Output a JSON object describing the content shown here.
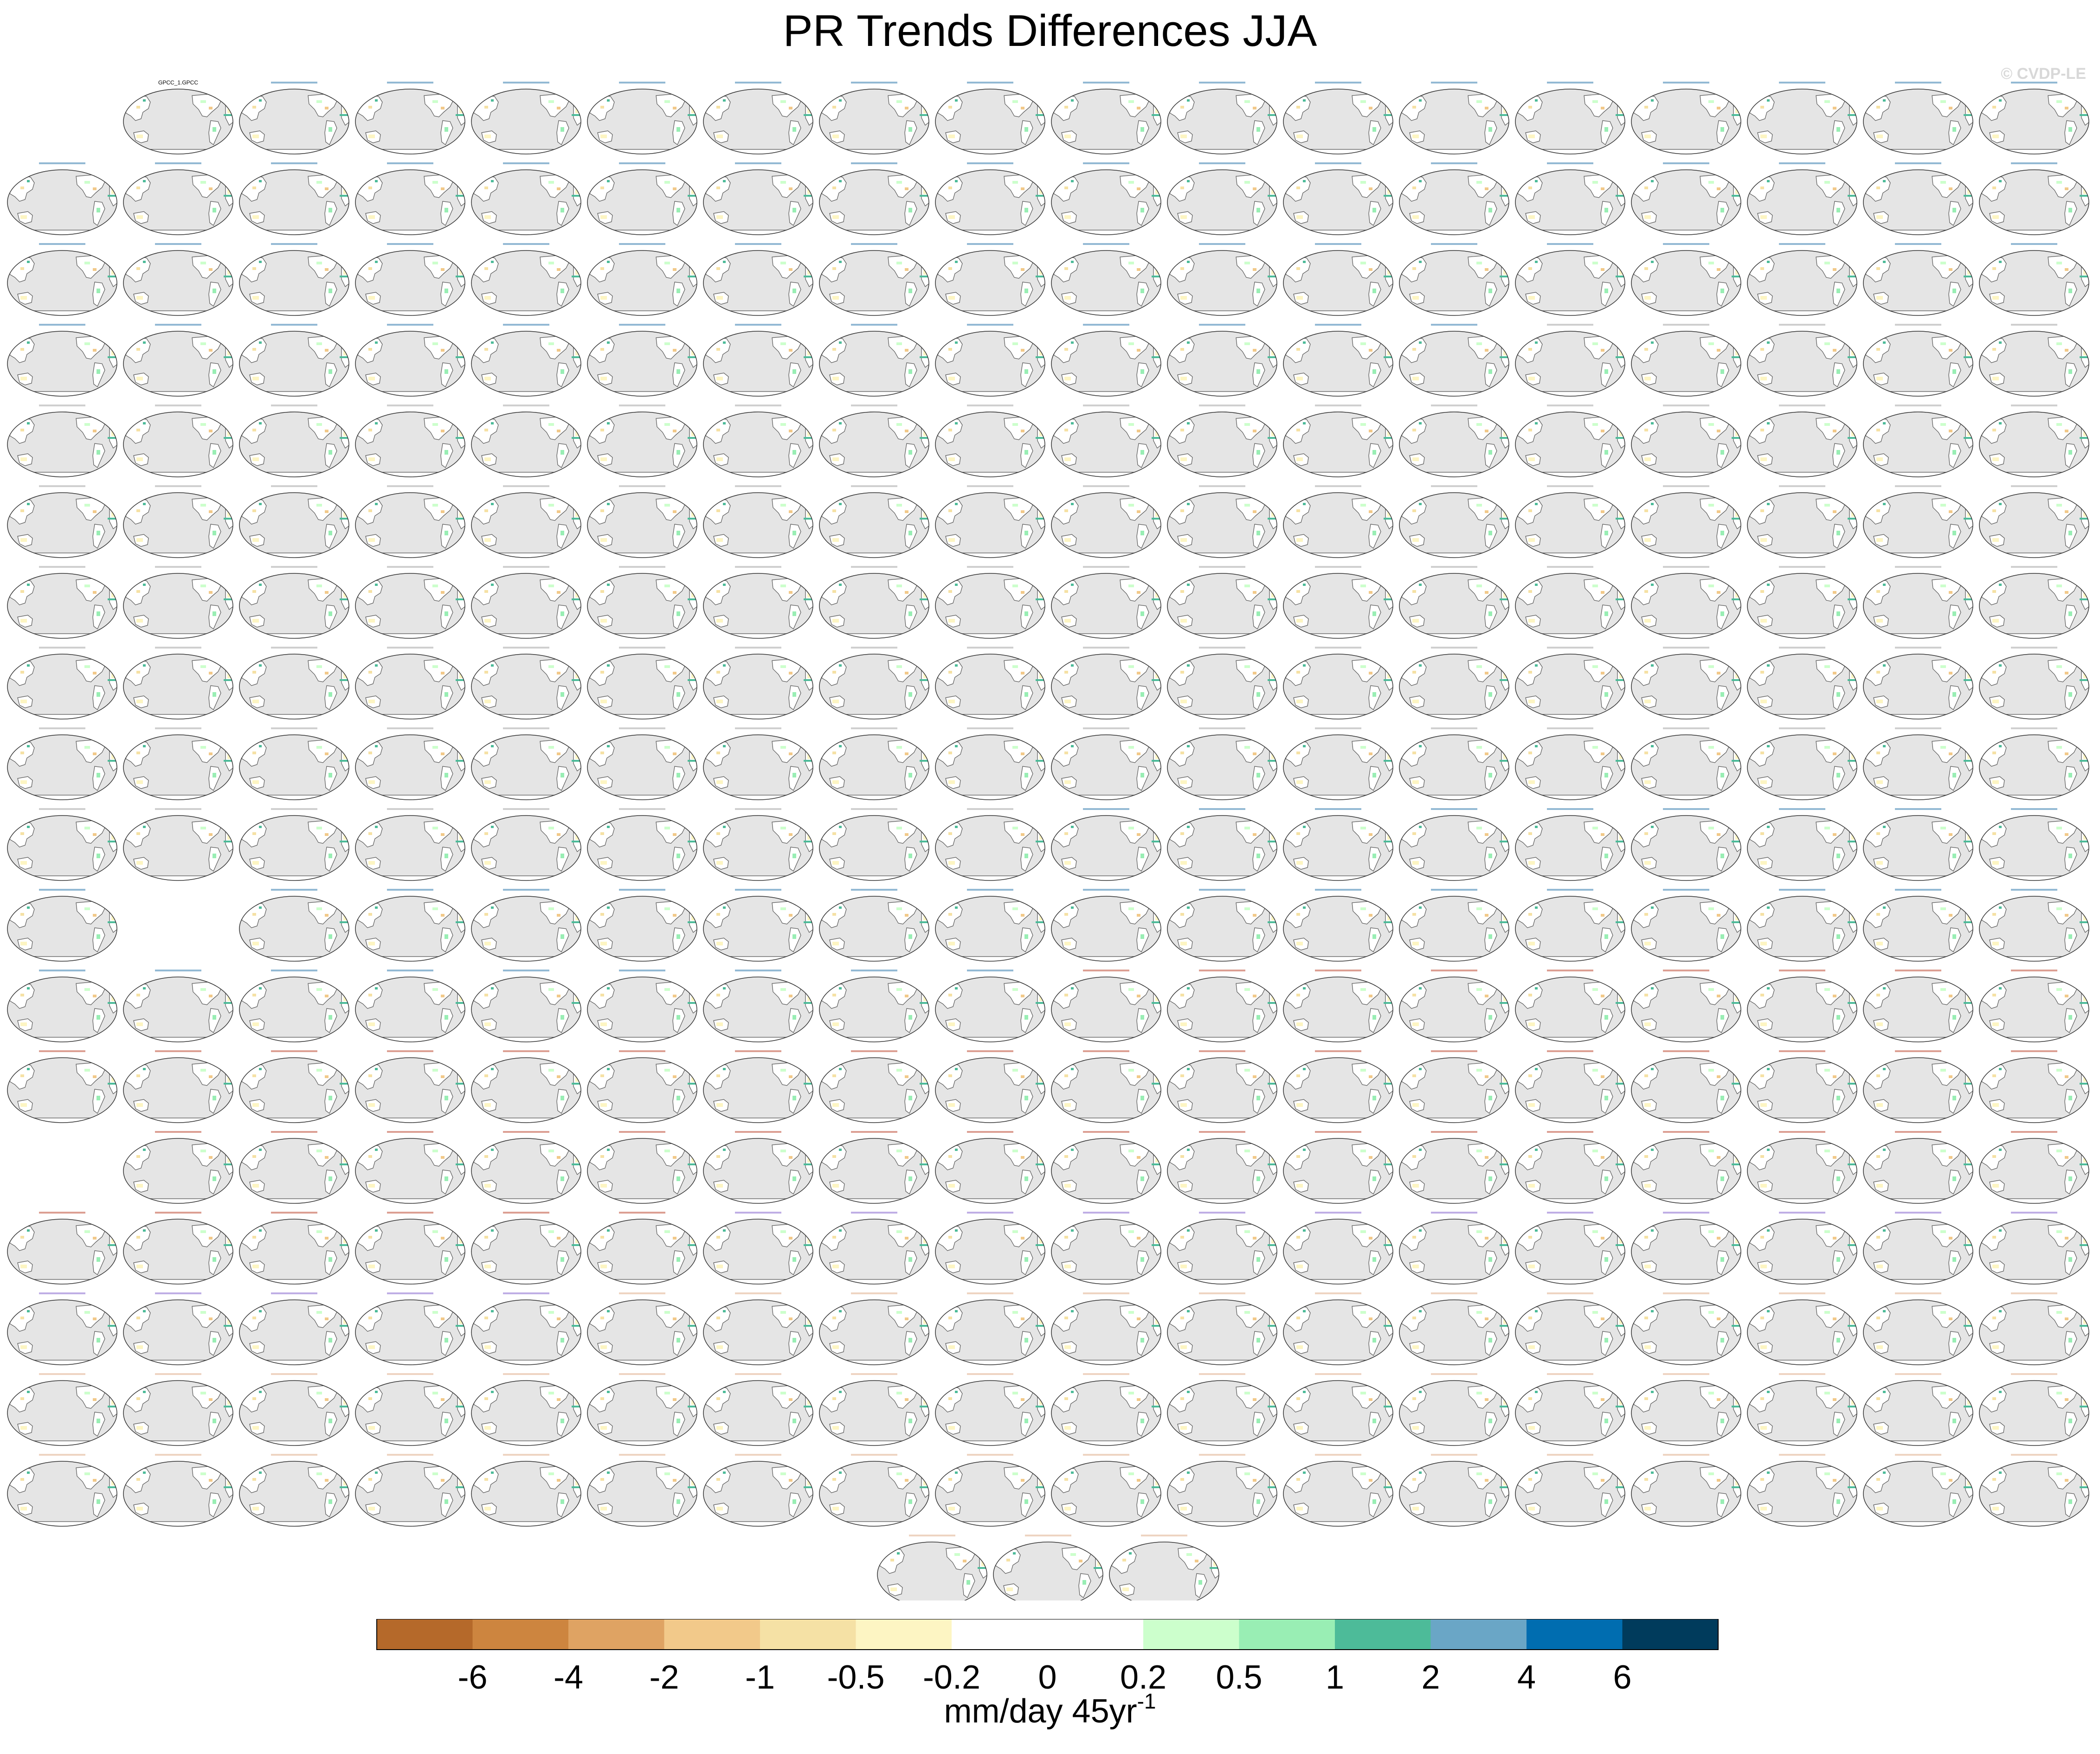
{
  "title": "PR Trends Differences JJA",
  "watermark": "© CVDP-LE",
  "panel_grid": {
    "columns": 18,
    "row_counts": [
      17,
      18,
      18,
      18,
      18,
      18,
      18,
      18,
      18,
      18,
      17,
      18,
      18,
      17,
      18,
      18,
      18,
      18,
      3
    ],
    "first_panel_label": "GPCC_1.GPCC"
  },
  "colors": {
    "ocean": "#e5e5e5",
    "coastline": "#555555",
    "title_cesm": "#3a7fb0",
    "title_cesm1_lens": "#a8a8a8",
    "title_giss": "#c0503a",
    "title_ipsl": "#8a6bd0",
    "title_miroc": "#e0b090",
    "title_obs": "#000000"
  },
  "colorbar": {
    "colors": [
      "#b5692a",
      "#cd853f",
      "#dfa363",
      "#f2c98a",
      "#f5e1a5",
      "#fdf5c3",
      "#ffffff",
      "#ffffff",
      "#ccffcc",
      "#99eeb4",
      "#4dbb99",
      "#6aa6c6",
      "#006db0",
      "#003b5c"
    ],
    "labels": [
      "-6",
      "-4",
      "-2",
      "-1",
      "-0.5",
      "-0.2",
      "0",
      "0.2",
      "0.5",
      "1",
      "2",
      "4",
      "6"
    ]
  },
  "units": {
    "text": "mm/day 45yr",
    "superscript": "-1"
  }
}
